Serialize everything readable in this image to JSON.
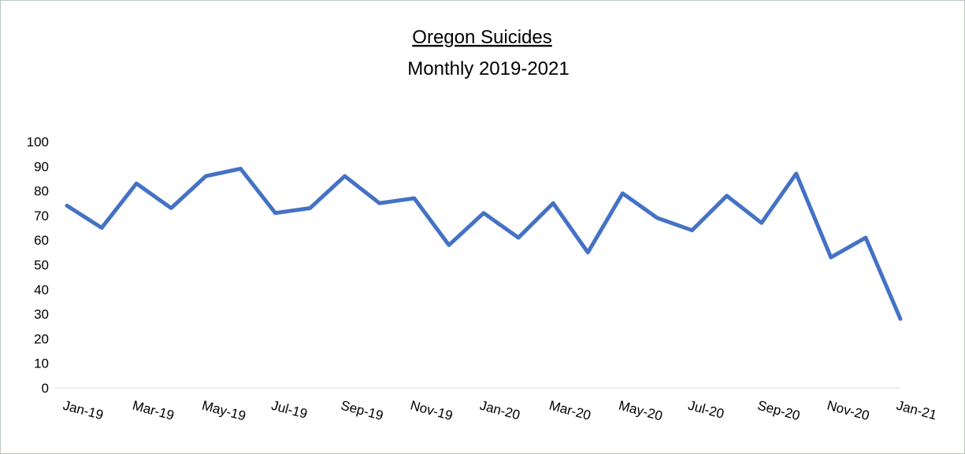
{
  "chart_data": {
    "type": "line",
    "title": "Oregon Suicides",
    "subtitle": "Monthly 2019-2021",
    "categories": [
      "Jan-19",
      null,
      "Mar-19",
      null,
      "May-19",
      null,
      "Jul-19",
      null,
      "Sep-19",
      null,
      "Nov-19",
      null,
      "Jan-20",
      null,
      "Mar-20",
      null,
      "May-20",
      null,
      "Jul-20",
      null,
      "Sep-20",
      null,
      "Nov-20",
      null,
      "Jan-21"
    ],
    "series": [
      {
        "name": "Suicides",
        "color": "#4472c4",
        "values": [
          74,
          65,
          83,
          73,
          86,
          89,
          71,
          73,
          86,
          75,
          77,
          58,
          71,
          61,
          75,
          55,
          79,
          69,
          64,
          78,
          67,
          87,
          53,
          61,
          28
        ]
      }
    ],
    "ylim": [
      0,
      100
    ],
    "yticks": [
      0,
      10,
      20,
      30,
      40,
      50,
      60,
      70,
      80,
      90,
      100
    ],
    "grid": false
  }
}
